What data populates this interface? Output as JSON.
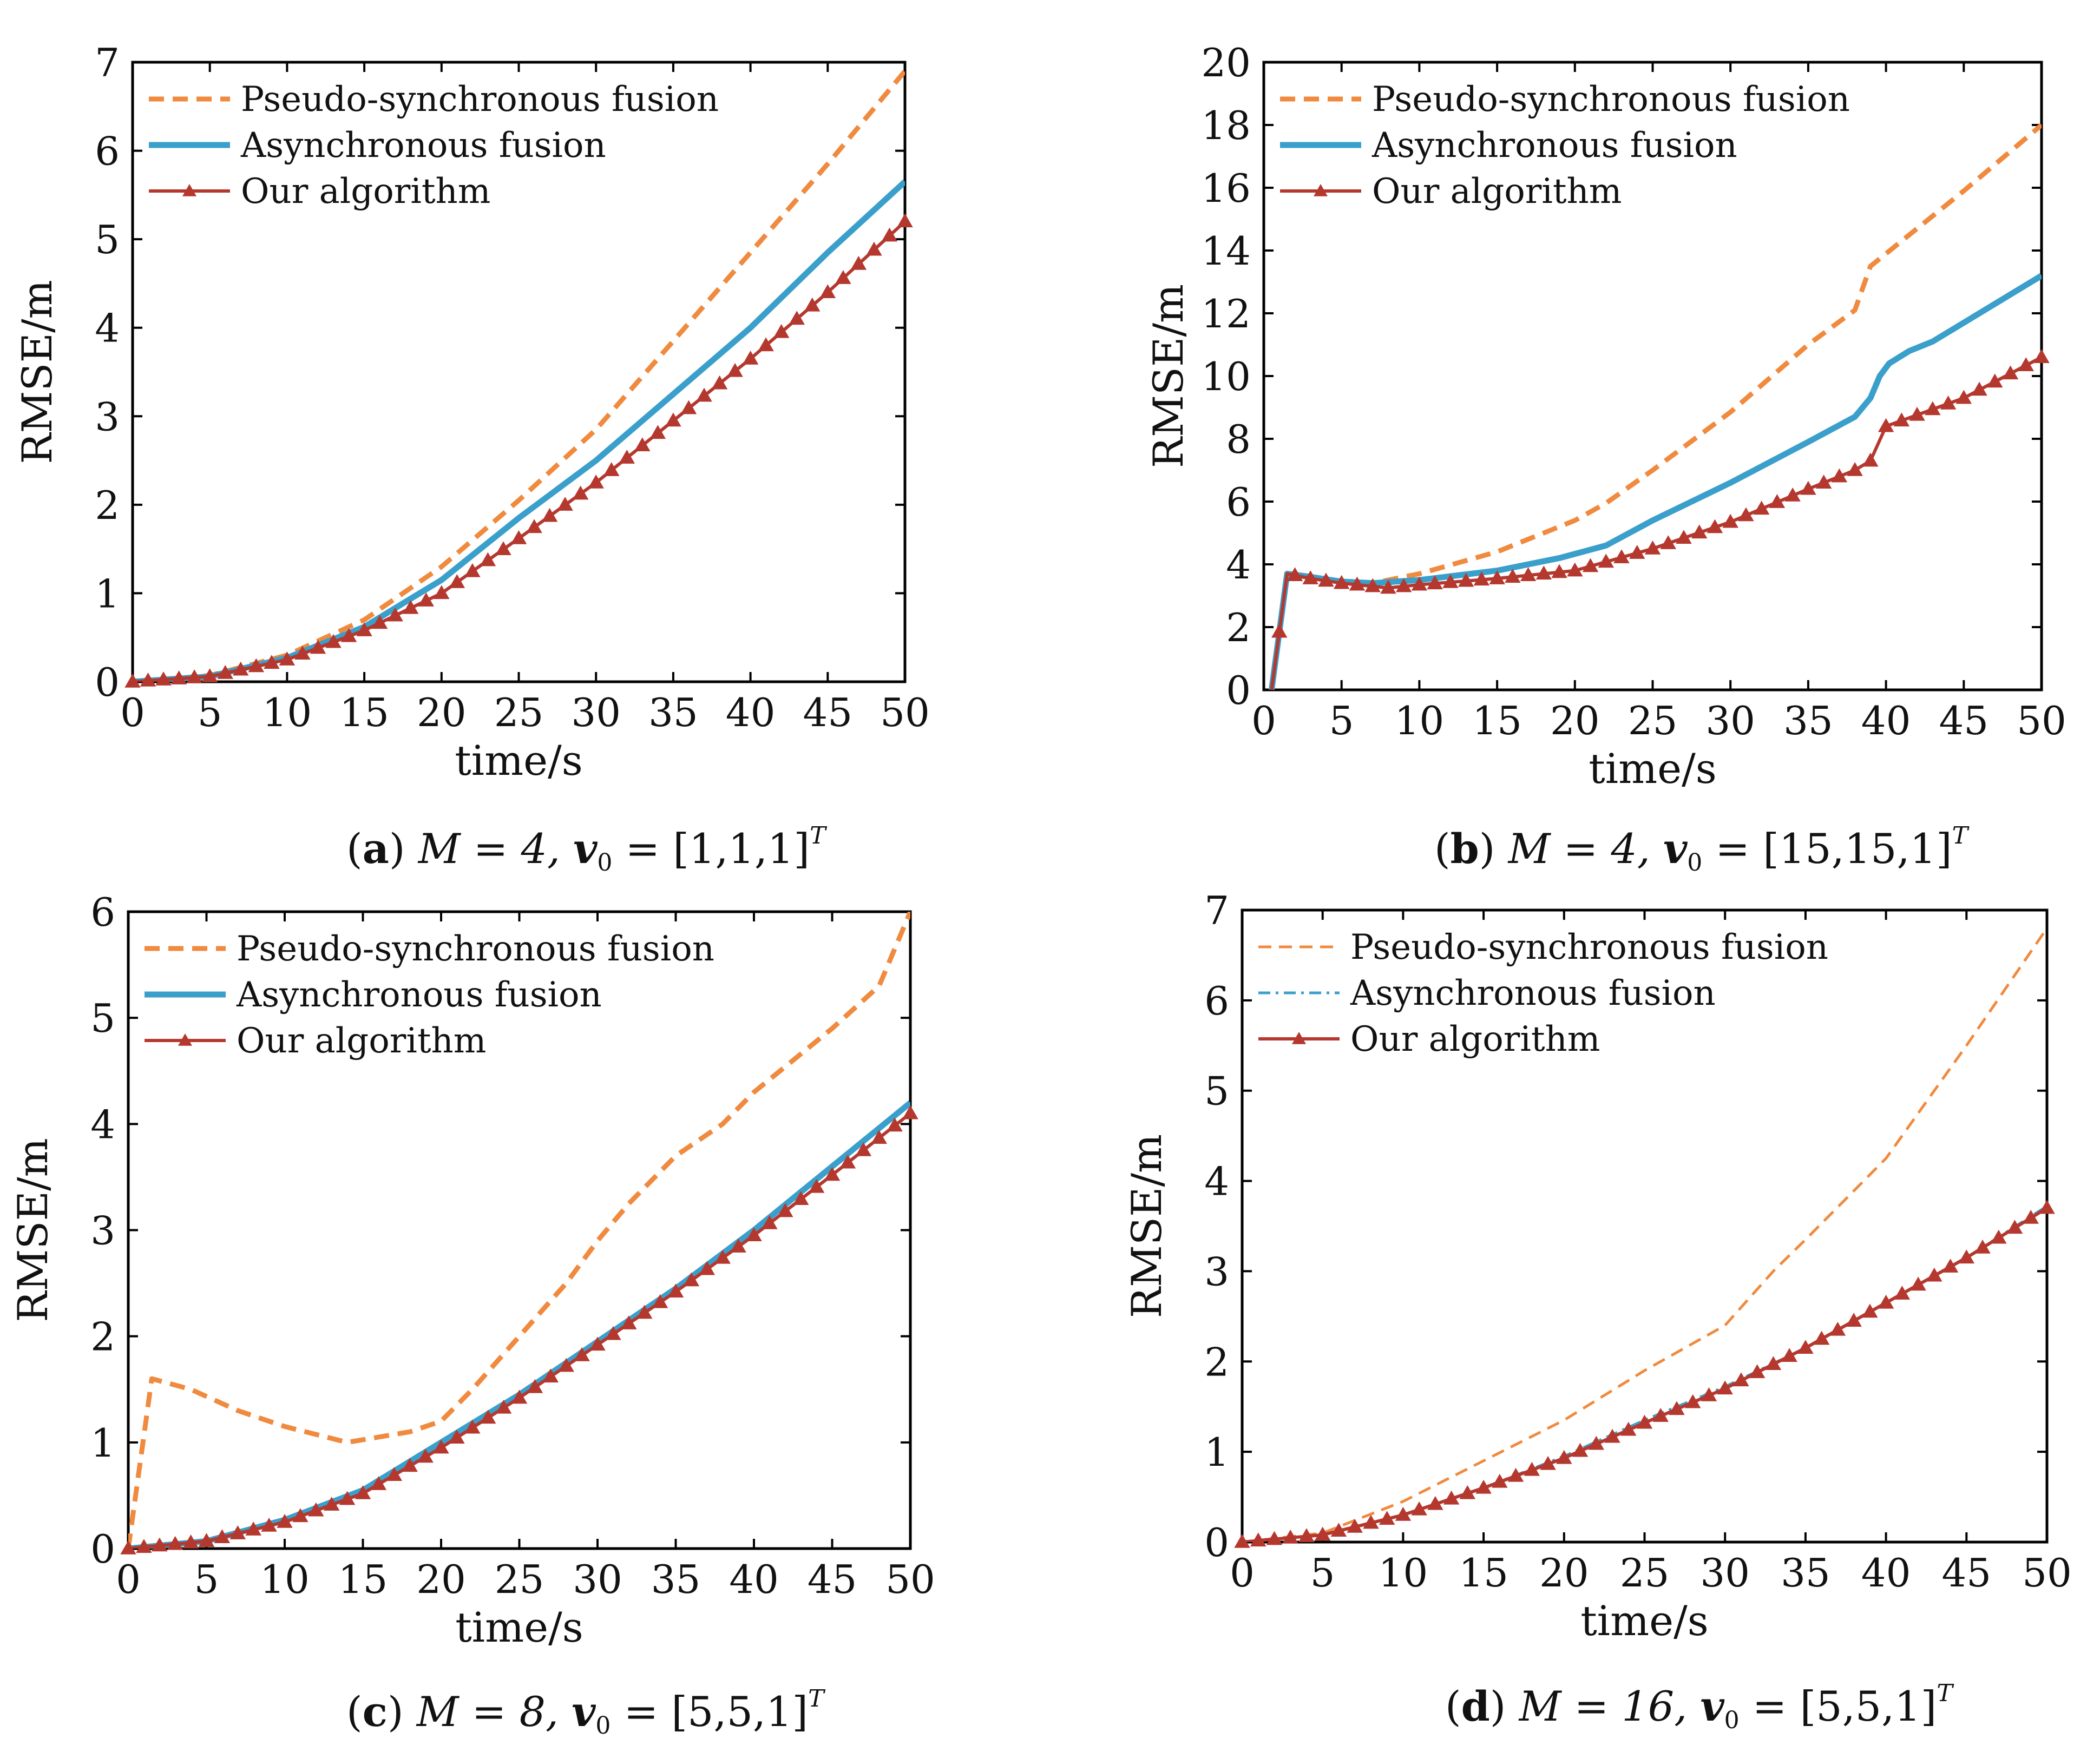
{
  "chart_data": [
    {
      "type": "line",
      "caption": {
        "letter": "(a)",
        "m": "M = 4,",
        "v": "v",
        "sub": "0",
        "eq": " = [1,1,1]",
        "sup": "T"
      },
      "xlabel": "time/s",
      "ylabel": "RMSE/m",
      "xlim": [
        0,
        50
      ],
      "ylim": [
        0,
        7
      ],
      "xticks": [
        0,
        5,
        10,
        15,
        20,
        25,
        30,
        35,
        40,
        45,
        50
      ],
      "yticks": [
        0,
        1,
        2,
        3,
        4,
        5,
        6,
        7
      ],
      "legend": "top-left",
      "series": [
        {
          "name": "Pseudo-synchronous fusion",
          "color": "#F08A3E",
          "style": "dashed",
          "width": 9,
          "marker": "none",
          "x": [
            0,
            5,
            10,
            15,
            20,
            25,
            30,
            35,
            40,
            45,
            50
          ],
          "y": [
            0,
            0.07,
            0.3,
            0.7,
            1.3,
            2.05,
            2.85,
            3.85,
            4.85,
            5.85,
            6.9
          ]
        },
        {
          "name": "Asynchronous fusion",
          "color": "#3A9FCB",
          "style": "solid",
          "width": 11,
          "marker": "none",
          "x": [
            0,
            5,
            10,
            15,
            20,
            25,
            30,
            35,
            40,
            45,
            50
          ],
          "y": [
            0,
            0.06,
            0.27,
            0.62,
            1.15,
            1.85,
            2.5,
            3.25,
            4.0,
            4.85,
            5.65
          ]
        },
        {
          "name": "Our algorithm",
          "color": "#B5382F",
          "style": "solid",
          "width": 6,
          "marker": "triangle",
          "x": [
            0,
            5,
            10,
            15,
            20,
            25,
            30,
            35,
            40,
            45,
            50
          ],
          "y": [
            0,
            0.06,
            0.25,
            0.58,
            1.0,
            1.62,
            2.25,
            2.95,
            3.65,
            4.4,
            5.2
          ]
        }
      ]
    },
    {
      "type": "line",
      "caption": {
        "letter": "(b)",
        "m": "M = 4,",
        "v": "v",
        "sub": "0",
        "eq": " = [15,15,1]",
        "sup": "T"
      },
      "xlabel": "time/s",
      "ylabel": "RMSE/m",
      "xlim": [
        0,
        50
      ],
      "ylim": [
        0,
        20
      ],
      "xticks": [
        0,
        5,
        10,
        15,
        20,
        25,
        30,
        35,
        40,
        45,
        50
      ],
      "yticks": [
        0,
        2,
        4,
        6,
        8,
        10,
        12,
        14,
        16,
        18,
        20
      ],
      "legend": "top-left",
      "series": [
        {
          "name": "Pseudo-synchronous fusion",
          "color": "#F08A3E",
          "style": "dashed",
          "width": 9,
          "marker": "none",
          "x": [
            0.5,
            1.5,
            3,
            5,
            7,
            10,
            15,
            20,
            22,
            25,
            30,
            35,
            38,
            39,
            40,
            45,
            50
          ],
          "y": [
            0,
            3.7,
            3.6,
            3.45,
            3.4,
            3.7,
            4.4,
            5.4,
            5.95,
            7.0,
            8.85,
            11.0,
            12.1,
            13.5,
            13.9,
            15.9,
            18.0
          ]
        },
        {
          "name": "Asynchronous fusion",
          "color": "#3A9FCB",
          "style": "solid",
          "width": 11,
          "marker": "none",
          "x": [
            0.5,
            1.5,
            3,
            5,
            7,
            10,
            15,
            19,
            22,
            25,
            30,
            35,
            38,
            39,
            39.6,
            40.2,
            41.5,
            43,
            45,
            50
          ],
          "y": [
            0,
            3.7,
            3.6,
            3.45,
            3.4,
            3.5,
            3.8,
            4.2,
            4.6,
            5.4,
            6.6,
            7.9,
            8.7,
            9.3,
            10.0,
            10.4,
            10.8,
            11.1,
            11.7,
            13.2
          ]
        },
        {
          "name": "Our algorithm",
          "color": "#B5382F",
          "style": "solid",
          "width": 6,
          "marker": "triangle",
          "x": [
            0.5,
            1.5,
            3,
            5,
            8,
            10,
            15,
            20,
            25,
            30,
            35,
            38,
            39,
            40,
            45,
            50
          ],
          "y": [
            0,
            3.7,
            3.55,
            3.4,
            3.25,
            3.35,
            3.55,
            3.8,
            4.5,
            5.35,
            6.4,
            7.0,
            7.3,
            8.4,
            9.3,
            10.6
          ]
        }
      ]
    },
    {
      "type": "line",
      "caption": {
        "letter": "(c)",
        "m": "M = 8,",
        "v": "v",
        "sub": "0",
        "eq": " = [5,5,1]",
        "sup": "T"
      },
      "xlabel": "time/s",
      "ylabel": "RMSE/m",
      "xlim": [
        0,
        50
      ],
      "ylim": [
        0,
        6
      ],
      "xticks": [
        0,
        5,
        10,
        15,
        20,
        25,
        30,
        35,
        40,
        45,
        50
      ],
      "yticks": [
        0,
        1,
        2,
        3,
        4,
        5,
        6
      ],
      "legend": "top-left",
      "series": [
        {
          "name": "Pseudo-synchronous fusion",
          "color": "#F08A3E",
          "style": "dashed",
          "width": 9,
          "marker": "none",
          "x": [
            0,
            1.5,
            4,
            7,
            10,
            14,
            16,
            18,
            20,
            22,
            25,
            28,
            30,
            32,
            35,
            38,
            40,
            45,
            48,
            50
          ],
          "y": [
            0,
            1.6,
            1.5,
            1.3,
            1.15,
            1.0,
            1.05,
            1.1,
            1.2,
            1.5,
            2.0,
            2.5,
            2.9,
            3.25,
            3.7,
            4.0,
            4.3,
            4.9,
            5.3,
            6.0
          ]
        },
        {
          "name": "Asynchronous fusion",
          "color": "#3A9FCB",
          "style": "solid",
          "width": 11,
          "marker": "none",
          "x": [
            0,
            5,
            10,
            15,
            20,
            25,
            30,
            35,
            40,
            45,
            50
          ],
          "y": [
            0,
            0.07,
            0.27,
            0.55,
            1.0,
            1.45,
            1.95,
            2.45,
            3.0,
            3.6,
            4.2
          ]
        },
        {
          "name": "Our algorithm",
          "color": "#B5382F",
          "style": "solid",
          "width": 6,
          "marker": "triangle",
          "x": [
            0,
            5,
            10,
            15,
            20,
            25,
            30,
            35,
            40,
            45,
            50
          ],
          "y": [
            0,
            0.07,
            0.25,
            0.52,
            0.95,
            1.42,
            1.92,
            2.42,
            2.95,
            3.52,
            4.1
          ]
        }
      ]
    },
    {
      "type": "line",
      "caption": {
        "letter": "(d)",
        "m": "M = 16,",
        "v": "v",
        "sub": "0",
        "eq": " = [5,5,1]",
        "sup": "T"
      },
      "xlabel": "time/s",
      "ylabel": "RMSE/m",
      "xlim": [
        0,
        50
      ],
      "ylim": [
        0,
        7
      ],
      "xticks": [
        0,
        5,
        10,
        15,
        20,
        25,
        30,
        35,
        40,
        45,
        50
      ],
      "yticks": [
        0,
        1,
        2,
        3,
        4,
        5,
        6,
        7
      ],
      "legend": "top-left",
      "series": [
        {
          "name": "Pseudo-synchronous fusion",
          "color": "#F08A3E",
          "style": "dashed",
          "width": 5,
          "marker": "none",
          "x": [
            0,
            5,
            10,
            15,
            20,
            25,
            30,
            33,
            35,
            40,
            45,
            50
          ],
          "y": [
            0,
            0.1,
            0.45,
            0.9,
            1.35,
            1.9,
            2.4,
            3.0,
            3.35,
            4.25,
            5.5,
            6.8
          ]
        },
        {
          "name": "Asynchronous fusion",
          "color": "#3A9FCB",
          "style": "dashdot",
          "width": 5,
          "marker": "none",
          "x": [
            0,
            5,
            10,
            15,
            20,
            25,
            30,
            35,
            40,
            45,
            50
          ],
          "y": [
            0,
            0.08,
            0.3,
            0.6,
            0.95,
            1.35,
            1.72,
            2.15,
            2.65,
            3.15,
            3.72
          ]
        },
        {
          "name": "Our algorithm",
          "color": "#B5382F",
          "style": "solid",
          "width": 6,
          "marker": "triangle",
          "x": [
            0,
            5,
            10,
            15,
            20,
            25,
            30,
            35,
            40,
            45,
            50
          ],
          "y": [
            0,
            0.08,
            0.3,
            0.6,
            0.93,
            1.32,
            1.7,
            2.15,
            2.65,
            3.15,
            3.7
          ]
        }
      ]
    }
  ]
}
